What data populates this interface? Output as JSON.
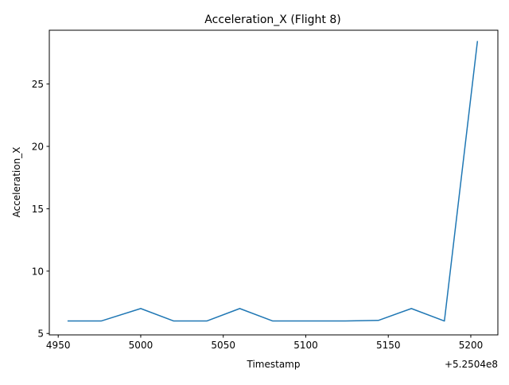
{
  "chart_data": {
    "type": "line",
    "title": "Acceleration_X (Flight 8)",
    "xlabel": "Timestamp",
    "ylabel": "Acceleration_X",
    "x_offset_label": "+5.2504e8",
    "xlim": [
      4944.6,
      5216.4
    ],
    "ylim": [
      4.888,
      29.312
    ],
    "x_ticks": [
      4950,
      5000,
      5050,
      5100,
      5150,
      5200
    ],
    "x_tick_labels": [
      "4950",
      "5000",
      "5050",
      "5100",
      "5150",
      "5200"
    ],
    "y_ticks": [
      5,
      10,
      15,
      20,
      25
    ],
    "y_tick_labels": [
      "5",
      "10",
      "15",
      "20",
      "25"
    ],
    "grid": false,
    "legend": "none",
    "series_color": "#1f77b4",
    "series": [
      {
        "x": [
          4956,
          4976,
          5000,
          5020,
          5040,
          5060,
          5080,
          5100,
          5124,
          5144,
          5164,
          5184,
          5204
        ],
        "values": [
          6.0,
          6.0,
          7.0,
          6.0,
          6.0,
          7.0,
          6.0,
          6.0,
          6.0,
          6.05,
          7.0,
          6.0,
          28.4
        ]
      }
    ]
  }
}
